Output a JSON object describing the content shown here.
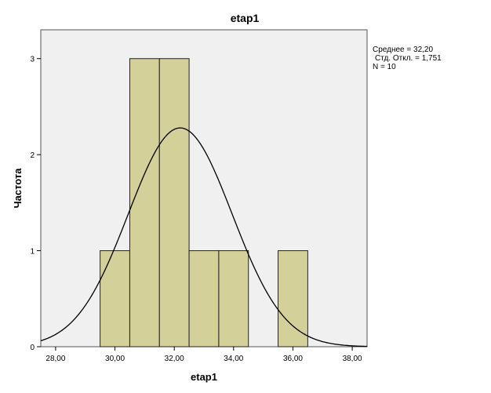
{
  "chart_data": {
    "type": "bar",
    "title": "etap1",
    "xlabel": "etap1",
    "ylabel": "Частота",
    "xlim": [
      27.5,
      38.5
    ],
    "ylim": [
      0,
      3.3
    ],
    "x_ticks": [
      "28,00",
      "30,00",
      "32,00",
      "34,00",
      "36,00",
      "38,00"
    ],
    "x_tick_values": [
      28,
      30,
      32,
      34,
      36,
      38
    ],
    "y_ticks": [
      "0",
      "1",
      "2",
      "3"
    ],
    "y_tick_values": [
      0,
      1,
      2,
      3
    ],
    "bins": [
      {
        "start": 29.5,
        "end": 30.5,
        "count": 1
      },
      {
        "start": 30.5,
        "end": 31.5,
        "count": 3
      },
      {
        "start": 31.5,
        "end": 32.5,
        "count": 3
      },
      {
        "start": 32.5,
        "end": 33.5,
        "count": 1
      },
      {
        "start": 33.5,
        "end": 34.5,
        "count": 1
      },
      {
        "start": 35.5,
        "end": 36.5,
        "count": 1
      }
    ],
    "normal_curve": {
      "mean": 32.2,
      "std": 1.751,
      "n": 10,
      "bin_width": 1
    },
    "stats": {
      "mean_label": "Среднее = 32,20",
      "std_label": "Стд. Откл. = 1,751",
      "n_label": "N = 10"
    },
    "grid": false,
    "colors": {
      "bar_fill": "#d4d09a",
      "bar_stroke": "#222222",
      "plot_bg": "#f0f0f0",
      "curve": "#000000"
    }
  }
}
